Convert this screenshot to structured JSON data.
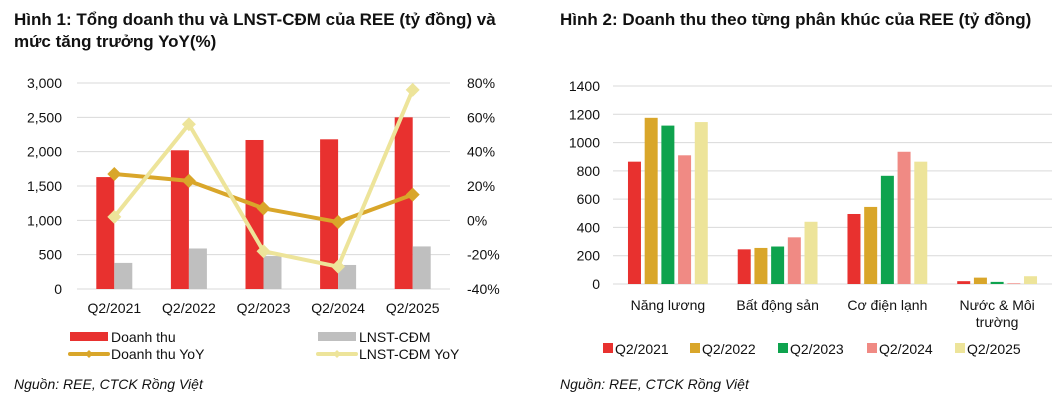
{
  "chart_data": [
    {
      "type": "bar+line",
      "title": "Hình 1: Tổng doanh thu và LNST-CĐM của REE (tỷ đồng) và mức tăng trưởng YoY(%)",
      "categories": [
        "Q2/2021",
        "Q2/2022",
        "Q2/2023",
        "Q2/2024",
        "Q2/2025"
      ],
      "y_left": {
        "range": [
          0,
          3000
        ],
        "ticks": [
          "0",
          "500",
          "1,000",
          "1,500",
          "2,000",
          "2,500",
          "3,000"
        ]
      },
      "y_right": {
        "range": [
          -40,
          80
        ],
        "ticks": [
          "-40%",
          "-20%",
          "0%",
          "20%",
          "40%",
          "60%",
          "80%"
        ]
      },
      "grid": true,
      "legend_position": "bottom",
      "series": [
        {
          "name": "Doanh thu",
          "kind": "bar",
          "axis": "left",
          "color": "#e8312f",
          "values": [
            1630,
            2020,
            2170,
            2180,
            2500
          ]
        },
        {
          "name": "LNST-CĐM",
          "kind": "bar",
          "axis": "left",
          "color": "#bfbfbf",
          "values": [
            380,
            590,
            480,
            350,
            620
          ]
        },
        {
          "name": "Doanh thu YoY",
          "kind": "line",
          "axis": "right",
          "color": "#d9a62a",
          "values": [
            27,
            23,
            7,
            -1,
            15
          ]
        },
        {
          "name": "LNST-CĐM YoY",
          "kind": "line",
          "axis": "right",
          "color": "#ede49a",
          "values": [
            2,
            56,
            -18,
            -27,
            76
          ]
        }
      ],
      "source": "Nguồn: REE, CTCK Rồng Việt"
    },
    {
      "type": "bar",
      "title": "Hình 2: Doanh thu theo từng phân khúc của REE (tỷ đồng)",
      "categories": [
        "Năng lương",
        "Bất động sản",
        "Cơ điện lạnh",
        "Nước & Môi trường"
      ],
      "y": {
        "range": [
          0,
          1400
        ],
        "ticks": [
          "0",
          "200",
          "400",
          "600",
          "800",
          "1000",
          "1200",
          "1400"
        ]
      },
      "grid": true,
      "legend_position": "bottom",
      "series": [
        {
          "name": "Q2/2021",
          "color": "#e8312f",
          "values": [
            865,
            245,
            495,
            20
          ]
        },
        {
          "name": "Q2/2022",
          "color": "#d9a62a",
          "values": [
            1175,
            255,
            545,
            45
          ]
        },
        {
          "name": "Q2/2023",
          "color": "#0ea34e",
          "values": [
            1120,
            265,
            765,
            15
          ]
        },
        {
          "name": "Q2/2024",
          "color": "#f08a84",
          "values": [
            910,
            330,
            935,
            5
          ]
        },
        {
          "name": "Q2/2025",
          "color": "#ede49a",
          "values": [
            1145,
            440,
            865,
            55
          ]
        }
      ],
      "source": "Nguồn: REE, CTCK Rồng Việt"
    }
  ]
}
